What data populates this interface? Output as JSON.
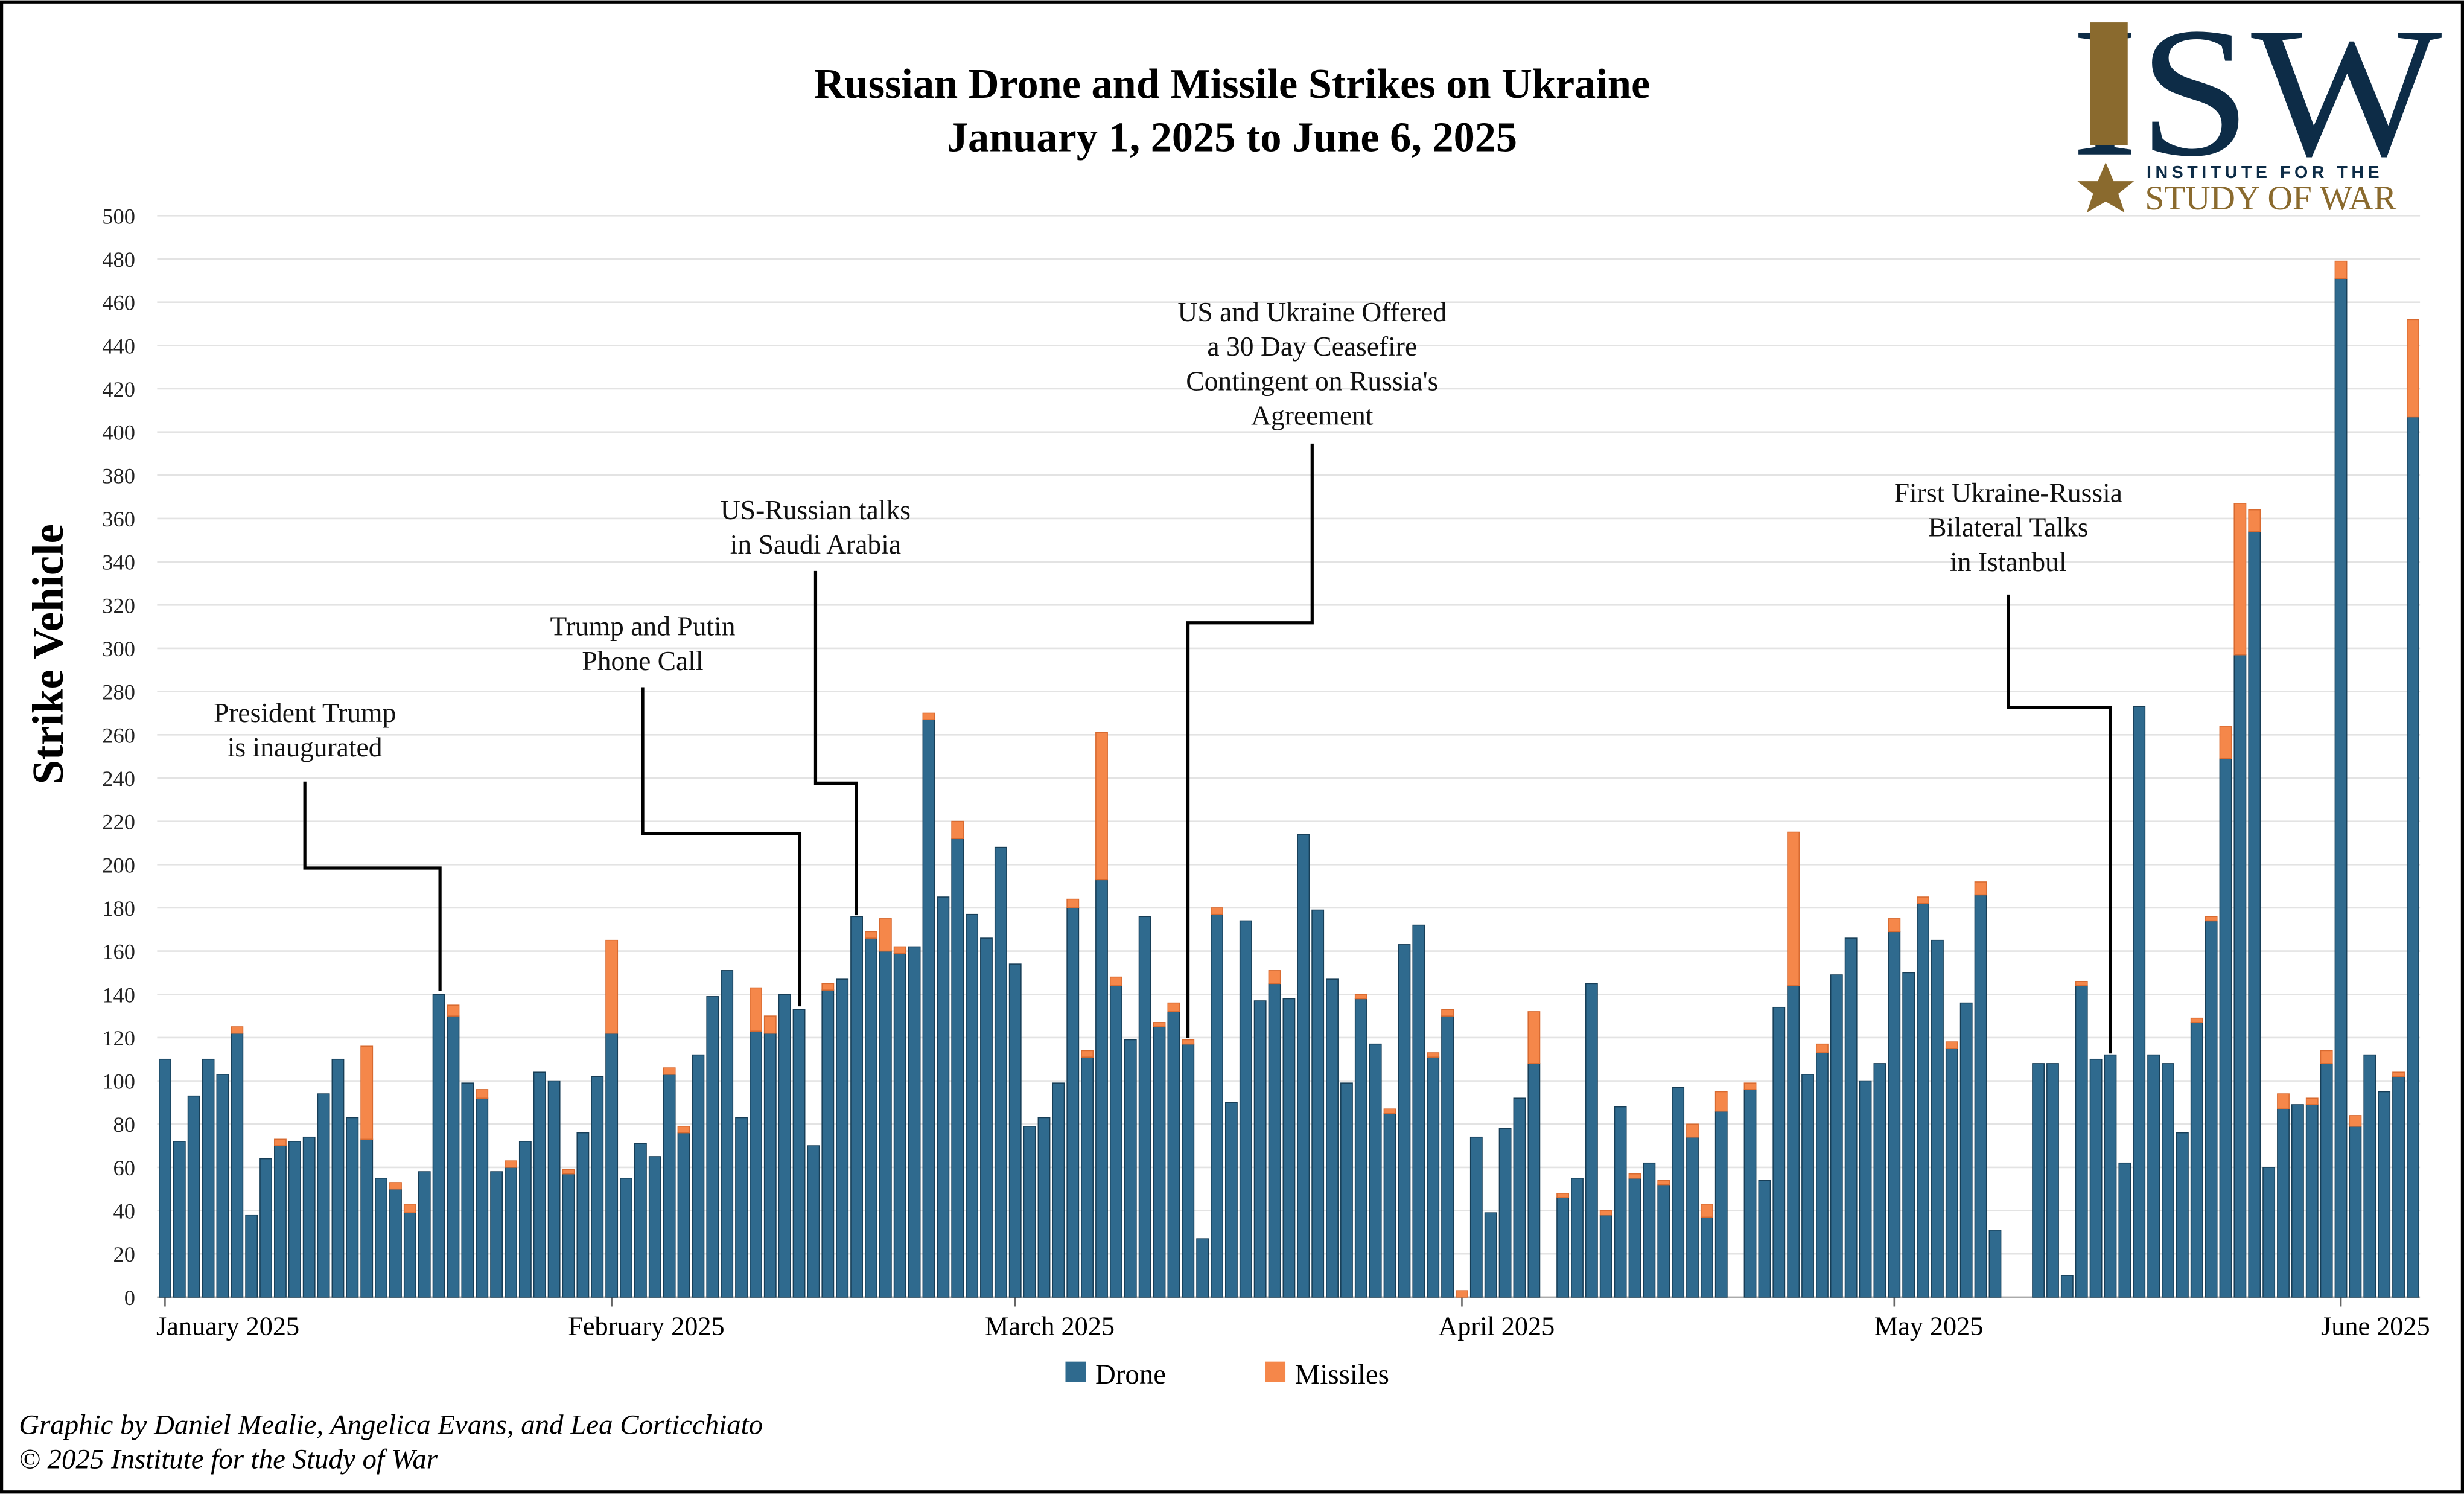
{
  "chart_data": {
    "type": "stacked-bar",
    "title": [
      "Russian Drone and Missile Strikes on Ukraine",
      "January 1, 2025 to June 6, 2025"
    ],
    "y_label": "Strike Vehicle",
    "categories": [
      "January 2025",
      null,
      null,
      null,
      null,
      null,
      null,
      null,
      null,
      null,
      null,
      null,
      null,
      null,
      null,
      null,
      null,
      null,
      null,
      null,
      null,
      null,
      null,
      null,
      null,
      null,
      null,
      null,
      null,
      null,
      null,
      "February 2025",
      null,
      null,
      null,
      null,
      null,
      null,
      null,
      null,
      null,
      null,
      null,
      null,
      null,
      null,
      null,
      null,
      null,
      null,
      null,
      null,
      null,
      null,
      null,
      null,
      null,
      null,
      null,
      "March 2025",
      null,
      null,
      null,
      null,
      null,
      null,
      null,
      null,
      null,
      null,
      null,
      null,
      null,
      null,
      null,
      null,
      null,
      null,
      null,
      null,
      null,
      null,
      null,
      null,
      null,
      null,
      null,
      null,
      null,
      null,
      "April 2025",
      null,
      null,
      null,
      null,
      null,
      null,
      null,
      null,
      null,
      null,
      null,
      null,
      null,
      null,
      null,
      null,
      null,
      null,
      null,
      null,
      null,
      null,
      null,
      null,
      null,
      null,
      null,
      null,
      null,
      "May 2025",
      null,
      null,
      null,
      null,
      null,
      null,
      null,
      null,
      null,
      null,
      null,
      null,
      null,
      null,
      null,
      null,
      null,
      null,
      null,
      null,
      null,
      null,
      null,
      null,
      null,
      null,
      null,
      null,
      null,
      null,
      "June 2025",
      null,
      null,
      null,
      null,
      null
    ],
    "series": [
      {
        "name": "Drone",
        "color": "#2f6a8e",
        "values": [
          110,
          72,
          93,
          110,
          103,
          122,
          38,
          64,
          70,
          72,
          74,
          94,
          110,
          83,
          73,
          55,
          50,
          39,
          58,
          140,
          130,
          99,
          92,
          58,
          60,
          72,
          104,
          100,
          57,
          76,
          102,
          122,
          55,
          71,
          65,
          103,
          76,
          112,
          139,
          151,
          83,
          123,
          122,
          140,
          133,
          70,
          142,
          147,
          176,
          166,
          160,
          159,
          162,
          267,
          185,
          212,
          177,
          166,
          208,
          154,
          79,
          83,
          99,
          180,
          111,
          193,
          144,
          119,
          176,
          125,
          132,
          117,
          27,
          177,
          90,
          174,
          137,
          145,
          138,
          214,
          179,
          147,
          99,
          138,
          117,
          85,
          163,
          172,
          111,
          130,
          0,
          74,
          39,
          78,
          92,
          108,
          null,
          46,
          55,
          145,
          38,
          88,
          55,
          62,
          52,
          97,
          74,
          37,
          86,
          null,
          96,
          54,
          134,
          144,
          103,
          113,
          149,
          166,
          100,
          108,
          169,
          150,
          182,
          165,
          115,
          136,
          186,
          31,
          null,
          null,
          108,
          108,
          10,
          144,
          110,
          112,
          62,
          273,
          112,
          108,
          76,
          127,
          174,
          249,
          297,
          354,
          60,
          87,
          89,
          89,
          108,
          471,
          79,
          112,
          95,
          102,
          407
        ]
      },
      {
        "name": "Missiles",
        "color": "#f5874a",
        "values": [
          0,
          0,
          0,
          0,
          0,
          3,
          0,
          0,
          3,
          0,
          0,
          0,
          0,
          0,
          43,
          0,
          3,
          4,
          0,
          0,
          5,
          0,
          4,
          0,
          3,
          0,
          0,
          0,
          2,
          0,
          0,
          43,
          0,
          0,
          0,
          3,
          3,
          0,
          0,
          0,
          0,
          20,
          8,
          0,
          0,
          0,
          3,
          0,
          0,
          3,
          15,
          3,
          0,
          3,
          0,
          8,
          0,
          0,
          0,
          0,
          0,
          0,
          0,
          4,
          3,
          68,
          4,
          0,
          0,
          2,
          4,
          2,
          0,
          3,
          0,
          0,
          0,
          6,
          0,
          0,
          0,
          0,
          0,
          2,
          0,
          2,
          0,
          0,
          2,
          3,
          3,
          0,
          0,
          0,
          0,
          24,
          null,
          2,
          0,
          0,
          2,
          0,
          2,
          0,
          2,
          0,
          6,
          6,
          9,
          null,
          3,
          0,
          0,
          71,
          0,
          4,
          0,
          0,
          0,
          0,
          6,
          0,
          3,
          0,
          3,
          0,
          6,
          0,
          null,
          null,
          0,
          0,
          0,
          2,
          0,
          0,
          0,
          0,
          0,
          0,
          0,
          2,
          2,
          15,
          70,
          10,
          0,
          7,
          0,
          3,
          6,
          8,
          5,
          0,
          0,
          2,
          45
        ]
      }
    ],
    "ylim": [
      0,
      500
    ],
    "yticks": [
      0,
      20,
      40,
      60,
      80,
      100,
      120,
      140,
      160,
      180,
      200,
      220,
      240,
      260,
      280,
      300,
      320,
      340,
      360,
      380,
      400,
      420,
      440,
      460,
      480,
      500
    ],
    "grid": true,
    "legend": "bottom",
    "annotations": [
      [
        "President Trump",
        "is inaugurated"
      ],
      [
        "Trump and Putin",
        "Phone Call"
      ],
      [
        "US-Russian talks",
        "in Saudi Arabia"
      ],
      [
        "US and Ukraine Offered",
        "a 30 Day Ceasefire",
        "Contingent on Russia's",
        "Agreement"
      ],
      [
        "First Ukraine-Russia",
        "Bilateral Talks",
        "in Istanbul"
      ]
    ],
    "credits": [
      "Graphic by Daniel Mealie, Angelica Evans, and Lea Corticchiato",
      "© 2025 Institute for the Study of War"
    ],
    "logo": {
      "mark": "ISW",
      "line1": "INSTITUTE FOR THE",
      "line2": "STUDY OF WAR"
    }
  }
}
